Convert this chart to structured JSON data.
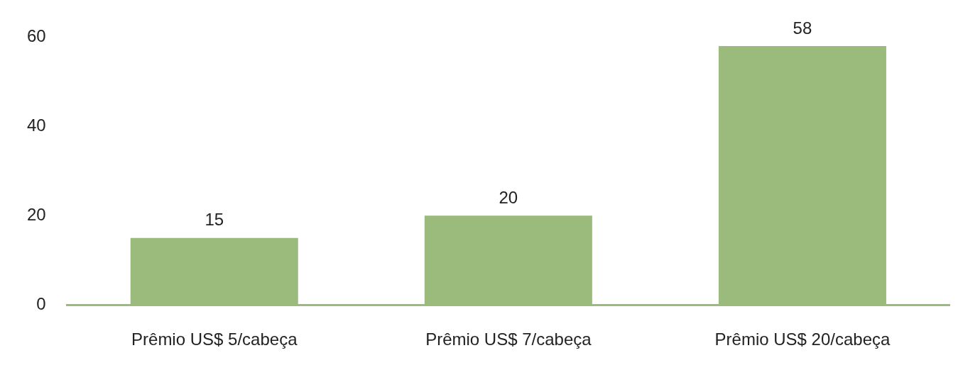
{
  "chart_data": {
    "type": "bar",
    "categories": [
      "Prêmio US$ 5/cabeça",
      "Prêmio US$ 7/cabeça",
      "Prêmio US$ 20/cabeça"
    ],
    "values": [
      15,
      20,
      58
    ],
    "color": "#9bbb7d",
    "ylim": [
      0,
      60
    ],
    "yticks": [
      0,
      20,
      40,
      60
    ],
    "grid": false,
    "data_labels": true
  }
}
